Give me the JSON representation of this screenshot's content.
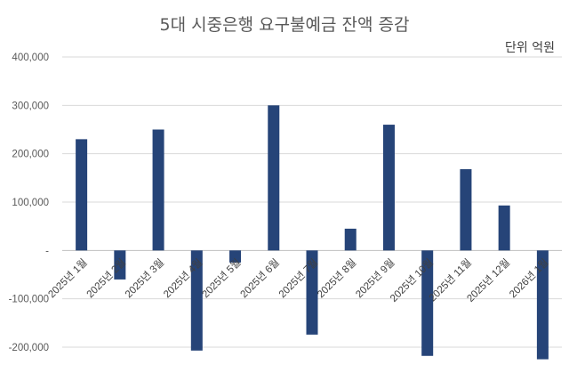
{
  "chart_data": {
    "type": "bar",
    "title": "5대 시중은행 요구불예금 잔액 증감",
    "unit_label": "단위 억원",
    "categories": [
      "2025년 1월",
      "2025년 2월",
      "2025년 3월",
      "2025년 4월",
      "2025년 5월",
      "2025년 6월",
      "2025년 7월",
      "2025년 8월",
      "2025년 9월",
      "2025년 10월",
      "2025년 11월",
      "2025년 12월",
      "2026년 1월"
    ],
    "values": [
      230000,
      -60000,
      250000,
      -207000,
      -25000,
      300000,
      -174000,
      45000,
      260000,
      -218000,
      168000,
      93000,
      -225000
    ],
    "ylim": [
      -200000,
      400000
    ],
    "yticks": [
      "400,000",
      "300,000",
      "200,000",
      "100,000",
      "-",
      "-100,000",
      "-200,000"
    ],
    "grid": true,
    "legend": "none",
    "bar_color": "#264478"
  }
}
